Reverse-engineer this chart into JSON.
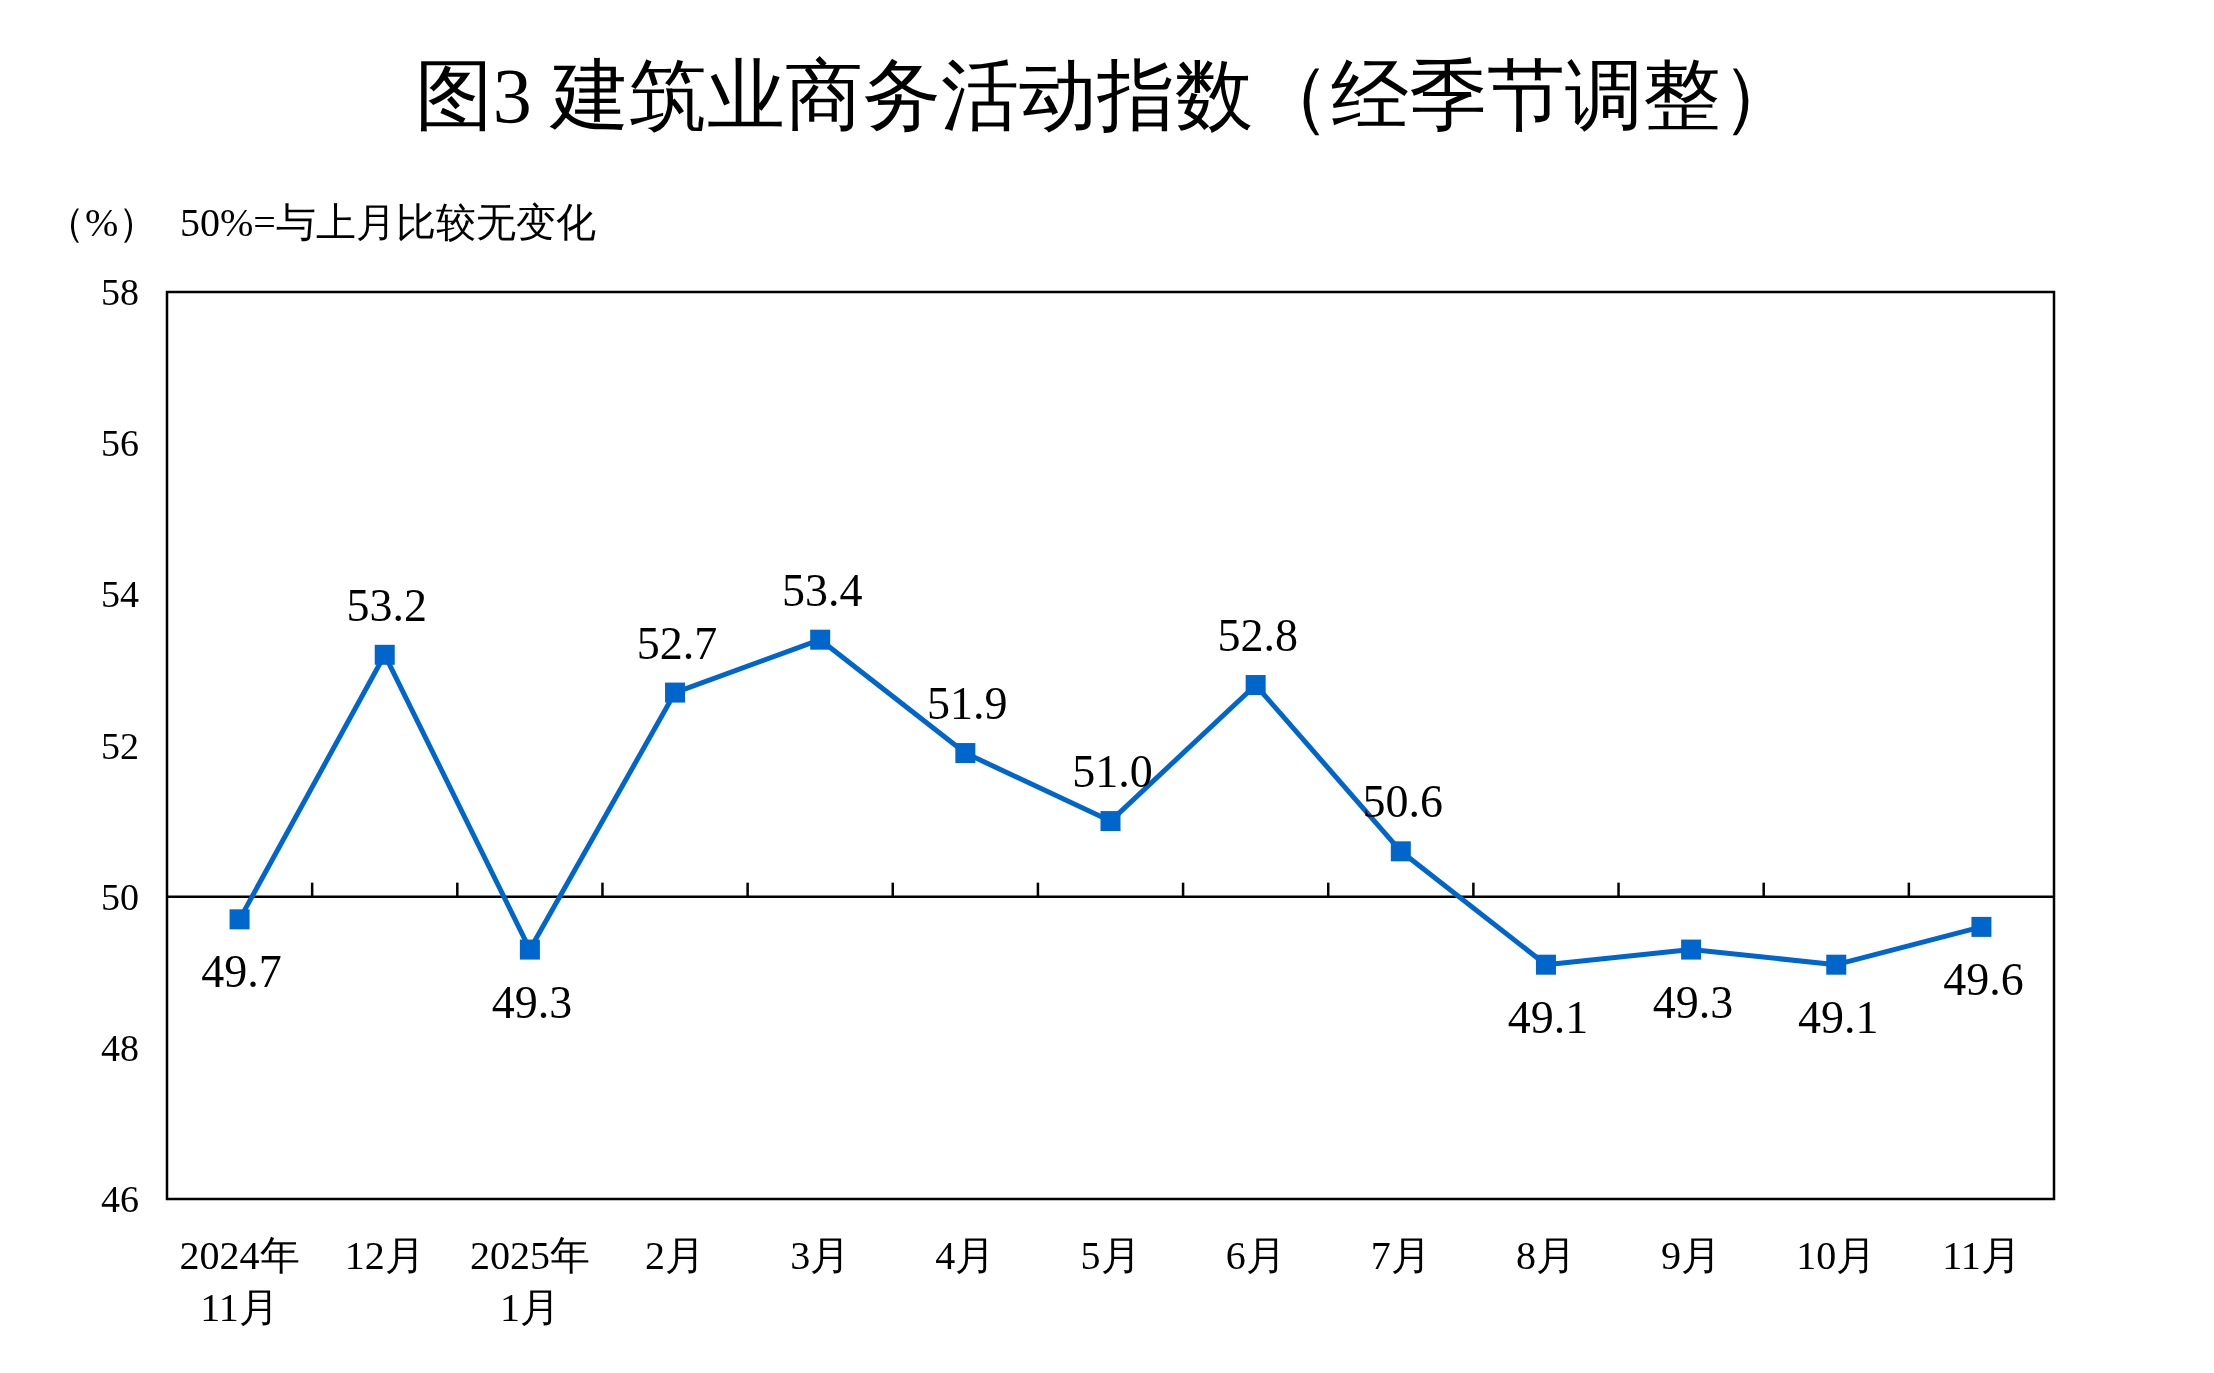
{
  "chart_data": {
    "type": "line",
    "title": "图3  建筑业商务活动指数（经季节调整）",
    "ylabel": "（%）",
    "annotations": [
      "50%=与上月比较无变化"
    ],
    "categories": [
      "2024年\n11月",
      "12月",
      "2025年\n1月",
      "2月",
      "3月",
      "4月",
      "5月",
      "6月",
      "7月",
      "8月",
      "9月",
      "10月",
      "11月"
    ],
    "series": [
      {
        "color": "#0066cc",
        "values": [
          49.7,
          53.2,
          49.3,
          52.7,
          53.4,
          51.9,
          51.0,
          52.8,
          50.6,
          49.1,
          49.3,
          49.1,
          49.6
        ],
        "value_labels": [
          "49.7",
          "53.2",
          "49.3",
          "52.7",
          "53.4",
          "51.9",
          "51.0",
          "52.8",
          "50.6",
          "49.1",
          "49.3",
          "49.1",
          "49.6"
        ]
      }
    ],
    "ylim": [
      46,
      58
    ],
    "yticks": [
      46,
      48,
      50,
      52,
      54,
      56,
      58
    ],
    "ref_lines": [
      {
        "axis": "y",
        "value": 50,
        "color": "#000000"
      }
    ],
    "marker": "square",
    "line_style": "solid",
    "grid": false
  }
}
